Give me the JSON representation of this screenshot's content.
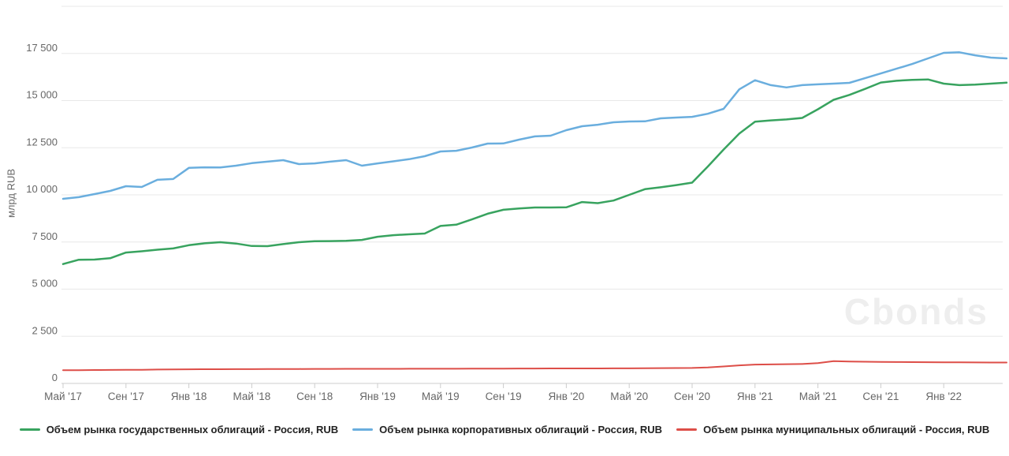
{
  "watermark": {
    "text": "Cbonds"
  },
  "axis_colors": {
    "gridline": "#e8e8e8",
    "axis_line": "#cccccc",
    "tick": "#cccccc",
    "label": "#666666"
  },
  "chart_data": {
    "type": "line",
    "title": "",
    "xlabel": "",
    "ylabel": "млрд RUB",
    "ylim": [
      0,
      20000
    ],
    "grid": "horizontal",
    "legend_position": "bottom",
    "y_ticks": {
      "values": [
        0,
        2500,
        5000,
        7500,
        10000,
        12500,
        15000,
        17500,
        20000
      ],
      "labels": [
        "0",
        "2 500",
        "5 000",
        "7 500",
        "10 000",
        "12 500",
        "15 000",
        "17 500",
        ""
      ]
    },
    "x_ticks": {
      "positions": [
        0,
        4,
        8,
        12,
        16,
        20,
        24,
        28,
        32,
        36,
        40,
        44,
        48,
        52,
        56
      ],
      "labels": [
        "Май '17",
        "Сен '17",
        "Янв '18",
        "Май '18",
        "Сен '18",
        "Янв '19",
        "Май '19",
        "Сен '19",
        "Янв '20",
        "Май '20",
        "Сен '20",
        "Янв '21",
        "Май '21",
        "Сен '21",
        "Янв '22"
      ]
    },
    "points_per_series": 61,
    "series": [
      {
        "name": "Объем рынка государственных облигаций - Россия, RUB",
        "color": "#38a35f",
        "values": [
          6330,
          6560,
          6570,
          6640,
          6940,
          7010,
          7090,
          7160,
          7330,
          7430,
          7490,
          7420,
          7290,
          7280,
          7390,
          7490,
          7540,
          7550,
          7560,
          7610,
          7780,
          7860,
          7910,
          7950,
          8350,
          8420,
          8700,
          9000,
          9210,
          9280,
          9330,
          9330,
          9340,
          9620,
          9560,
          9700,
          10000,
          10300,
          10400,
          10520,
          10650,
          11500,
          12400,
          13250,
          13880,
          13950,
          14000,
          14080,
          14540,
          15040,
          15300,
          15620,
          15960,
          16050,
          16100,
          16120,
          15900,
          15820,
          15850,
          15900,
          15950
        ]
      },
      {
        "name": "Объем рынка корпоративных облигаций - Россия, RUB",
        "color": "#6aaede",
        "values": [
          9790,
          9880,
          10040,
          10210,
          10460,
          10420,
          10800,
          10840,
          11430,
          11460,
          11450,
          11550,
          11680,
          11760,
          11840,
          11630,
          11670,
          11760,
          11840,
          11550,
          11670,
          11780,
          11890,
          12050,
          12300,
          12340,
          12510,
          12720,
          12730,
          12930,
          13100,
          13140,
          13430,
          13640,
          13720,
          13850,
          13890,
          13900,
          14060,
          14100,
          14140,
          14300,
          14560,
          15600,
          16080,
          15820,
          15700,
          15820,
          15860,
          15900,
          15940,
          16190,
          16440,
          16690,
          16940,
          17240,
          17530,
          17560,
          17400,
          17280,
          17240
        ]
      },
      {
        "name": "Объем рынка муниципальных облигаций - Россия, RUB",
        "color": "#dd4e48",
        "values": [
          700,
          705,
          710,
          715,
          720,
          725,
          735,
          745,
          750,
          752,
          755,
          757,
          758,
          760,
          762,
          765,
          768,
          770,
          772,
          775,
          775,
          776,
          778,
          778,
          780,
          780,
          782,
          785,
          788,
          790,
          792,
          795,
          795,
          796,
          797,
          798,
          800,
          805,
          810,
          815,
          820,
          850,
          900,
          960,
          1000,
          1010,
          1020,
          1030,
          1080,
          1180,
          1160,
          1150,
          1140,
          1135,
          1130,
          1125,
          1120,
          1120,
          1115,
          1110,
          1110
        ]
      }
    ]
  }
}
